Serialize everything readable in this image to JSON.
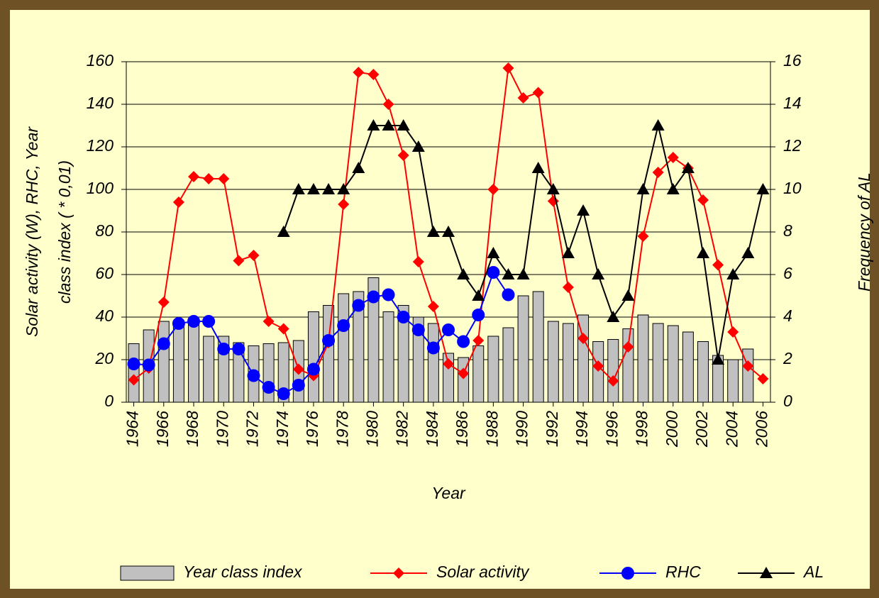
{
  "chart_data": {
    "type": "bar-line",
    "xlabel": "Year",
    "ylabel": [
      "Solar activity (W), RHC, Year",
      "class index ( * 0,01)"
    ],
    "y2label": "Frequency of AL",
    "categories": [
      "1964",
      null,
      "1966",
      null,
      "1968",
      null,
      "1970",
      null,
      "1972",
      null,
      "1974",
      null,
      "1976",
      null,
      "1978",
      null,
      "1980",
      null,
      "1982",
      null,
      "1984",
      null,
      "1986",
      null,
      "1988",
      null,
      "1990",
      null,
      "1992",
      null,
      "1994",
      null,
      "1996",
      null,
      "1998",
      null,
      "2000",
      null,
      "2002",
      null,
      "2004",
      null,
      "2006"
    ],
    "ylim": [
      0,
      160
    ],
    "yticks": [
      0,
      20,
      40,
      60,
      80,
      100,
      120,
      140,
      160
    ],
    "y2lim": [
      0,
      16
    ],
    "y2ticks": [
      0,
      2,
      4,
      6,
      8,
      10,
      12,
      14,
      16
    ],
    "grid": true,
    "legend": "bottom",
    "series": [
      {
        "name": "Year class index",
        "kind": "bar",
        "color": "#c0c0c0",
        "values": [
          27.5,
          34,
          38,
          37,
          38,
          31,
          31,
          28,
          26.5,
          27.5,
          28,
          29,
          42.5,
          45.5,
          51,
          52,
          58.5,
          42.5,
          45.5,
          40,
          37,
          23,
          21,
          26.5,
          31,
          35,
          50,
          52,
          38,
          37,
          41,
          28.5,
          29.5,
          34.5,
          41,
          37,
          36,
          33,
          28.5,
          22,
          20,
          25,
          null
        ]
      },
      {
        "name": "Solar activity",
        "kind": "line",
        "marker": "diamond",
        "color": "#ff0000",
        "values": [
          10.5,
          16,
          47,
          94,
          106,
          105,
          105,
          66.5,
          69,
          38,
          34.5,
          15.5,
          12.5,
          28,
          93,
          155,
          154,
          140,
          116,
          66,
          45,
          18,
          13.5,
          29,
          100,
          157,
          143,
          145.5,
          94.5,
          54,
          30,
          17,
          10,
          26,
          78,
          108,
          115,
          110,
          95,
          64.5,
          33,
          17,
          11
        ]
      },
      {
        "name": "RHC",
        "kind": "line",
        "marker": "circle",
        "color": "#0000ff",
        "values": [
          18,
          17.5,
          27.5,
          37,
          38,
          38,
          25,
          25,
          12.5,
          7,
          4,
          8,
          15.5,
          29,
          36,
          45.5,
          49.5,
          50.5,
          40,
          34,
          25.5,
          34,
          28.5,
          41,
          61,
          50.5,
          null,
          null,
          null,
          null,
          null,
          null,
          null,
          null,
          null,
          null,
          null,
          null,
          null,
          null,
          null,
          null,
          null
        ]
      },
      {
        "name": "AL",
        "kind": "line",
        "marker": "triangle",
        "color": "#000000",
        "axis": "y2",
        "values": [
          null,
          null,
          null,
          null,
          null,
          null,
          null,
          null,
          null,
          null,
          8,
          10,
          10,
          10,
          10,
          11,
          13,
          13,
          13,
          12,
          8,
          8,
          6,
          5,
          7,
          6,
          6,
          11,
          10,
          7,
          9,
          6,
          4,
          5,
          10,
          13,
          10,
          11,
          7,
          2,
          6,
          7,
          10
        ]
      }
    ]
  }
}
